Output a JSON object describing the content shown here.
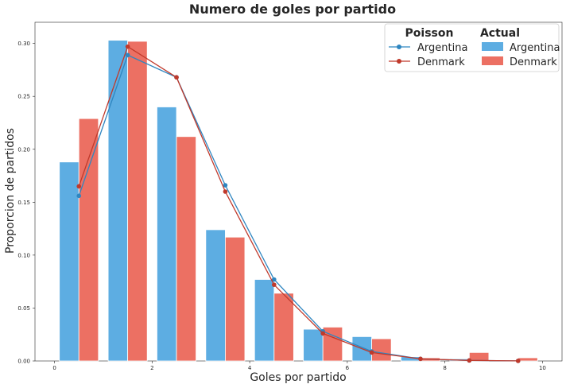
{
  "chart_data": {
    "type": "bar",
    "title": "Numero de goles por partido",
    "xlabel": "Goles por partido",
    "ylabel": "Proporcion de partidos",
    "xlim": [
      -0.4,
      10.4
    ],
    "ylim": [
      0,
      0.32
    ],
    "xticks": [
      "0",
      "2",
      "4",
      "6",
      "8",
      "10"
    ],
    "yticks": [
      "0.00",
      "0.05",
      "0.10",
      "0.15",
      "0.20",
      "0.25",
      "0.30"
    ],
    "grid": false,
    "legend_position": "top-right",
    "colors": {
      "argentina": "#5dade2",
      "denmark": "#ec7063",
      "argentina_line": "#2e86c1",
      "denmark_line": "#c0392b"
    },
    "bars": {
      "header": "Actual",
      "series": [
        {
          "name": "Argentina",
          "x": [
            0.3,
            1.3,
            2.3,
            3.3,
            4.3,
            5.3,
            6.3,
            7.3,
            8.3,
            9.3
          ],
          "values": [
            0.188,
            0.303,
            0.24,
            0.124,
            0.077,
            0.03,
            0.023,
            0.004,
            0.002,
            0.0
          ]
        },
        {
          "name": "Denmark",
          "x": [
            0.7,
            1.7,
            2.7,
            3.7,
            4.7,
            5.7,
            6.7,
            7.7,
            8.7,
            9.7
          ],
          "values": [
            0.229,
            0.302,
            0.212,
            0.117,
            0.064,
            0.032,
            0.021,
            0.003,
            0.008,
            0.003
          ]
        }
      ]
    },
    "lines": {
      "header": "Poisson",
      "series": [
        {
          "name": "Argentina",
          "x": [
            0.5,
            1.5,
            2.5,
            3.5,
            4.5,
            5.5,
            6.5,
            7.5,
            8.5,
            9.5
          ],
          "values": [
            0.156,
            0.289,
            0.268,
            0.166,
            0.077,
            0.028,
            0.009,
            0.002,
            0.0005,
            0.0001
          ]
        },
        {
          "name": "Denmark",
          "x": [
            0.5,
            1.5,
            2.5,
            3.5,
            4.5,
            5.5,
            6.5,
            7.5,
            8.5,
            9.5
          ],
          "values": [
            0.165,
            0.297,
            0.268,
            0.16,
            0.072,
            0.026,
            0.008,
            0.002,
            0.0005,
            0.0001
          ]
        }
      ]
    }
  }
}
